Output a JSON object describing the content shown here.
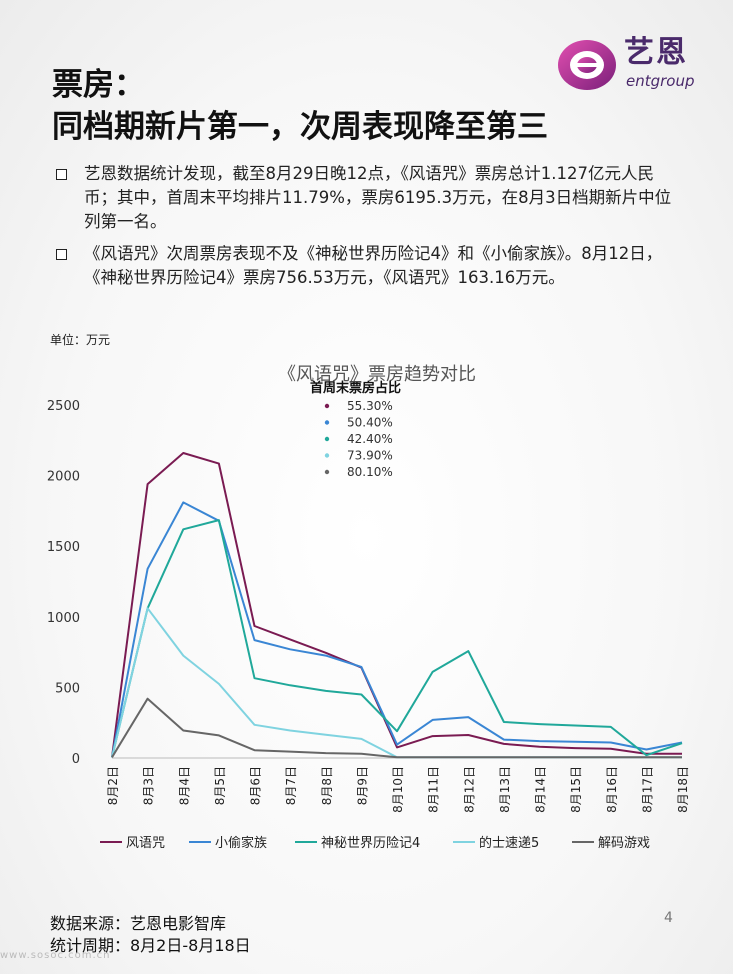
{
  "logo": {
    "cn": "艺恩",
    "en": "entgroup"
  },
  "title": {
    "line1": "票房：",
    "line2": "同档期新片第一，次周表现降至第三"
  },
  "bullets": [
    "艺恩数据统计发现，截至8月29日晚12点，《风语咒》票房总计1.127亿元人民币；其中，首周末平均排片11.79%，票房6195.3万元，在8月3日档期新片中位列第一名。",
    "《风语咒》次周票房表现不及《神秘世界历险记4》和《小偷家族》。8月12日，《神秘世界历险记4》票房756.53万元，《风语咒》163.16万元。"
  ],
  "unit_label": "单位：万元",
  "chart_data": {
    "type": "line",
    "title": "《风语咒》票房趋势对比",
    "categories": [
      "8月2日",
      "8月3日",
      "8月4日",
      "8月5日",
      "8月6日",
      "8月7日",
      "8月8日",
      "8月9日",
      "8月10日",
      "8月11日",
      "8月12日",
      "8月13日",
      "8月14日",
      "8月15日",
      "8月16日",
      "8月17日",
      "8月18日"
    ],
    "ylim": [
      0,
      2500
    ],
    "yticks": [
      0,
      500,
      1000,
      1500,
      2000,
      2500
    ],
    "grid": false,
    "legend_position": "bottom",
    "series": [
      {
        "name": "风语咒",
        "color": "#7a1b52",
        "values": [
          5,
          1940,
          2160,
          2085,
          935,
          840,
          745,
          640,
          75,
          155,
          163,
          100,
          80,
          70,
          65,
          30,
          30
        ]
      },
      {
        "name": "小偷家族",
        "color": "#3a86d4",
        "values": [
          5,
          1340,
          1810,
          1680,
          835,
          770,
          725,
          645,
          95,
          270,
          290,
          130,
          120,
          115,
          110,
          60,
          110
        ]
      },
      {
        "name": "神秘世界历险记4",
        "color": "#20a89a",
        "values": [
          5,
          1060,
          1620,
          1685,
          565,
          515,
          475,
          450,
          190,
          610,
          757,
          255,
          240,
          230,
          220,
          20,
          105
        ]
      },
      {
        "name": "的士速递5",
        "color": "#7fd3e0",
        "values": [
          5,
          1060,
          725,
          525,
          235,
          195,
          165,
          135,
          5,
          5,
          5,
          5,
          5,
          5,
          5,
          5,
          5
        ]
      },
      {
        "name": "解码游戏",
        "color": "#666666",
        "values": [
          5,
          420,
          195,
          160,
          55,
          45,
          35,
          30,
          5,
          5,
          5,
          5,
          5,
          5,
          5,
          5,
          5
        ]
      }
    ],
    "inner_legend": {
      "title": "首周末票房占比",
      "items": [
        {
          "label": "55.30%",
          "color": "#7a1b52"
        },
        {
          "label": "50.40%",
          "color": "#3a86d4"
        },
        {
          "label": "42.40%",
          "color": "#20a89a"
        },
        {
          "label": "73.90%",
          "color": "#7fd3e0"
        },
        {
          "label": "80.10%",
          "color": "#666666"
        }
      ]
    }
  },
  "footer": {
    "source": "数据来源：艺恩电影智库",
    "period": "统计周期：8月2日-8月18日"
  },
  "page_number": "4",
  "watermark": "www.sosoc.com.cn"
}
